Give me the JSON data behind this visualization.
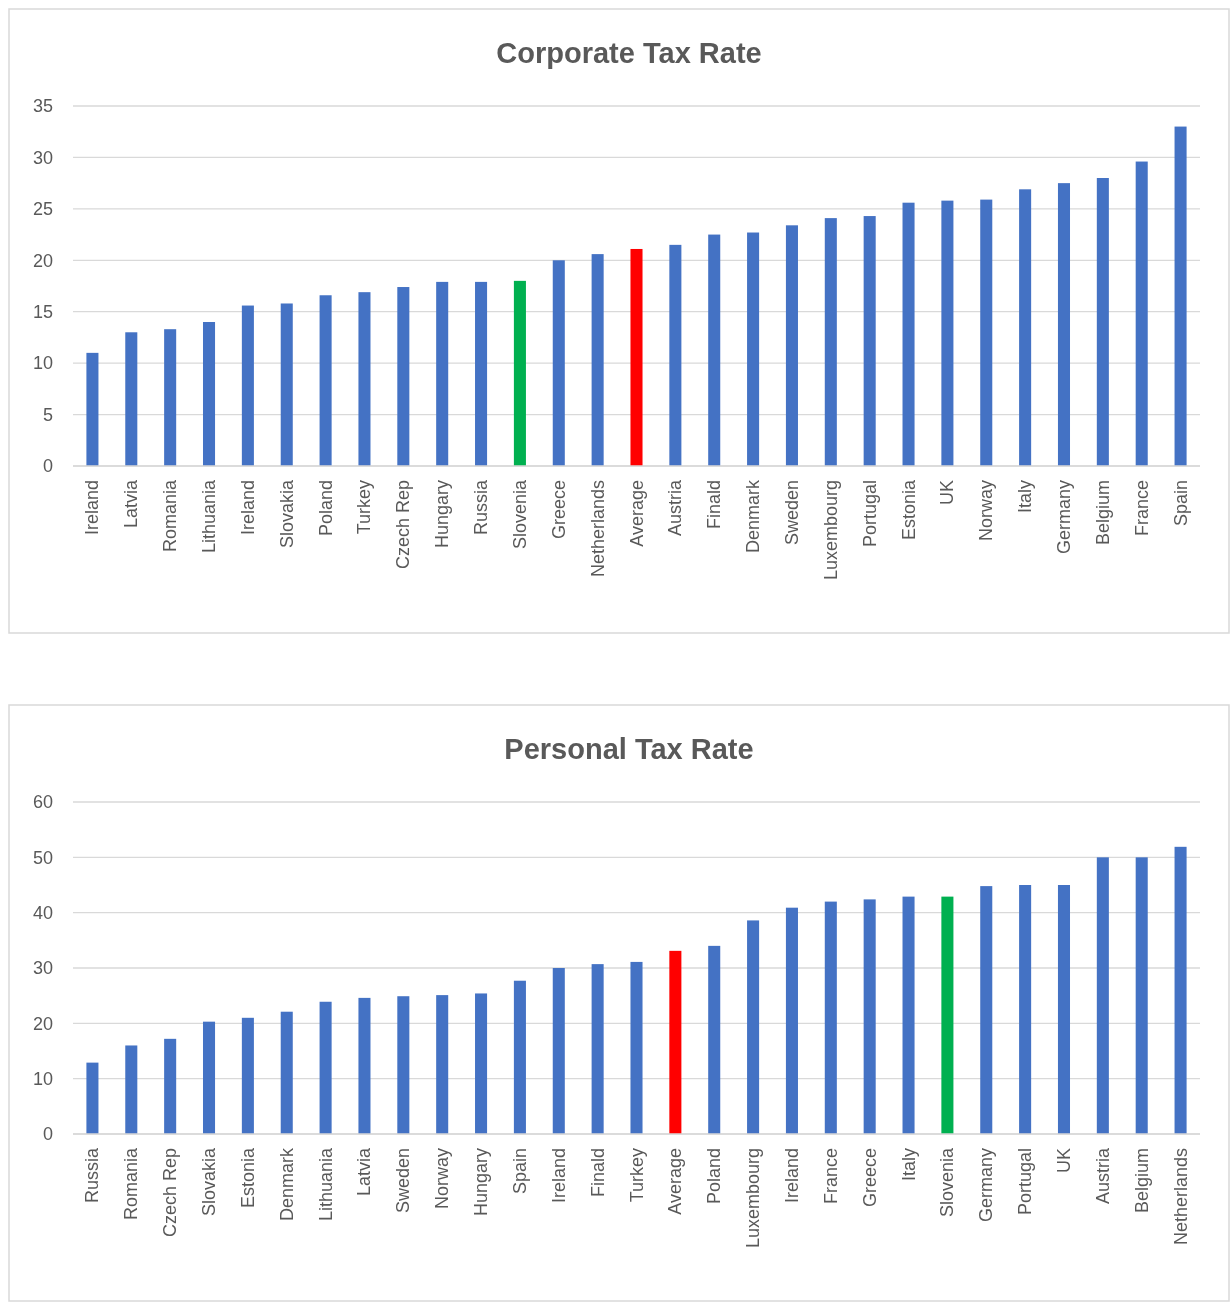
{
  "chart_data": [
    {
      "type": "bar",
      "title": "Corporate Tax Rate",
      "categories": [
        "Ireland",
        "Latvia",
        "Romania",
        "Lithuania",
        "Ireland",
        "Slovakia",
        "Poland",
        "Turkey",
        "Czech Rep",
        "Hungary",
        "Russia",
        "Slovenia",
        "Greece",
        "Netherlands",
        "Average",
        "Austria",
        "Finald",
        "Denmark",
        "Sweden",
        "Luxembourg",
        "Portugal",
        "Estonia",
        "UK",
        "Norway",
        "Italy",
        "Germany",
        "Belgium",
        "France",
        "Spain"
      ],
      "values": [
        11,
        13,
        13.3,
        14,
        15.6,
        15.8,
        16.6,
        16.9,
        17.4,
        17.9,
        17.9,
        18,
        20,
        20.6,
        21.1,
        21.5,
        22.5,
        22.7,
        23.4,
        24.1,
        24.3,
        25.6,
        25.8,
        25.9,
        26.9,
        27.5,
        28,
        29.6,
        33
      ],
      "colors": [
        "#4472c4",
        "#4472c4",
        "#4472c4",
        "#4472c4",
        "#4472c4",
        "#4472c4",
        "#4472c4",
        "#4472c4",
        "#4472c4",
        "#4472c4",
        "#4472c4",
        "#00b050",
        "#4472c4",
        "#4472c4",
        "#ff0000",
        "#4472c4",
        "#4472c4",
        "#4472c4",
        "#4472c4",
        "#4472c4",
        "#4472c4",
        "#4472c4",
        "#4472c4",
        "#4472c4",
        "#4472c4",
        "#4472c4",
        "#4472c4",
        "#4472c4",
        "#4472c4"
      ],
      "ylim": [
        0,
        35
      ],
      "yticks": [
        0,
        5,
        10,
        15,
        20,
        25,
        30,
        35
      ],
      "grid": "y"
    },
    {
      "type": "bar",
      "title": "Personal Tax Rate",
      "categories": [
        "Russia",
        "Romania",
        "Czech Rep",
        "Slovakia",
        "Estonia",
        "Denmark",
        "Lithuania",
        "Latvia",
        "Sweden",
        "Norway",
        "Hungary",
        "Spain",
        "Ireland",
        "Finald",
        "Turkey",
        "Average",
        "Poland",
        "Luxembourg",
        "Ireland",
        "France",
        "Greece",
        "Italy",
        "Slovenia",
        "Germany",
        "Portugal",
        "UK",
        "Austria",
        "Belgium",
        "Netherlands"
      ],
      "values": [
        12.9,
        16,
        17.2,
        20.3,
        21,
        22.1,
        23.9,
        24.6,
        24.9,
        25.1,
        25.4,
        27.7,
        30,
        30.7,
        31.1,
        33.1,
        34,
        38.6,
        40.9,
        42,
        42.4,
        42.9,
        42.9,
        44.8,
        45,
        45,
        50,
        50,
        51.9
      ],
      "colors": [
        "#4472c4",
        "#4472c4",
        "#4472c4",
        "#4472c4",
        "#4472c4",
        "#4472c4",
        "#4472c4",
        "#4472c4",
        "#4472c4",
        "#4472c4",
        "#4472c4",
        "#4472c4",
        "#4472c4",
        "#4472c4",
        "#4472c4",
        "#ff0000",
        "#4472c4",
        "#4472c4",
        "#4472c4",
        "#4472c4",
        "#4472c4",
        "#4472c4",
        "#00b050",
        "#4472c4",
        "#4472c4",
        "#4472c4",
        "#4472c4",
        "#4472c4",
        "#4472c4"
      ],
      "ylim": [
        0,
        60
      ],
      "yticks": [
        0,
        10,
        20,
        30,
        40,
        50,
        60
      ],
      "grid": "y"
    }
  ]
}
